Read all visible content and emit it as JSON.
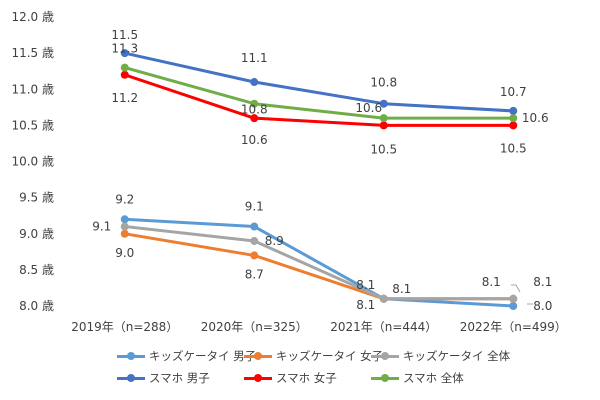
{
  "chart_data": {
    "type": "line",
    "categories": [
      "2019年（n=288）",
      "2020年（n=325）",
      "2021年（n=444）",
      "2022年（n=499）"
    ],
    "y_tick_labels": [
      "8.0 歳",
      "8.5 歳",
      "9.0 歳",
      "9.5 歳",
      "10.0 歳",
      "10.5 歳",
      "11.0 歳",
      "11.5 歳",
      "12.0 歳"
    ],
    "ylim": [
      8.0,
      12.0
    ],
    "ytick_step": 0.5,
    "grid": false,
    "legend_position": "bottom",
    "series": [
      {
        "name": "キッズケータイ 男子",
        "color": "#5B9BD5",
        "values": [
          9.2,
          9.1,
          8.1,
          8.0
        ],
        "labels": [
          "9.2",
          "9.1",
          "8.1",
          "8.0"
        ]
      },
      {
        "name": "キッズケータイ 女子",
        "color": "#ED7D31",
        "values": [
          9.0,
          8.7,
          8.1,
          8.1
        ],
        "labels": [
          "9.0",
          "8.7",
          "8.1",
          "8.1"
        ]
      },
      {
        "name": "キッズケータイ 全体",
        "color": "#A5A5A5",
        "values": [
          9.1,
          8.9,
          8.1,
          8.1
        ],
        "labels": [
          "9.1",
          "8.9",
          "8.1",
          "8.1"
        ]
      },
      {
        "name": "スマホ 男子",
        "color": "#4472C4",
        "values": [
          11.5,
          11.1,
          10.8,
          10.7
        ],
        "labels": [
          "11.5",
          "11.1",
          "10.8",
          "10.7"
        ]
      },
      {
        "name": "スマホ 女子",
        "color": "#FF0000",
        "values": [
          11.2,
          10.6,
          10.5,
          10.5
        ],
        "labels": [
          "11.2",
          "10.6",
          "10.5",
          "10.5"
        ]
      },
      {
        "name": "スマホ 全体",
        "color": "#70AD47",
        "values": [
          11.3,
          10.8,
          10.6,
          10.6
        ],
        "labels": [
          "11.3",
          "10.8",
          "10.6",
          "10.6"
        ]
      }
    ]
  }
}
